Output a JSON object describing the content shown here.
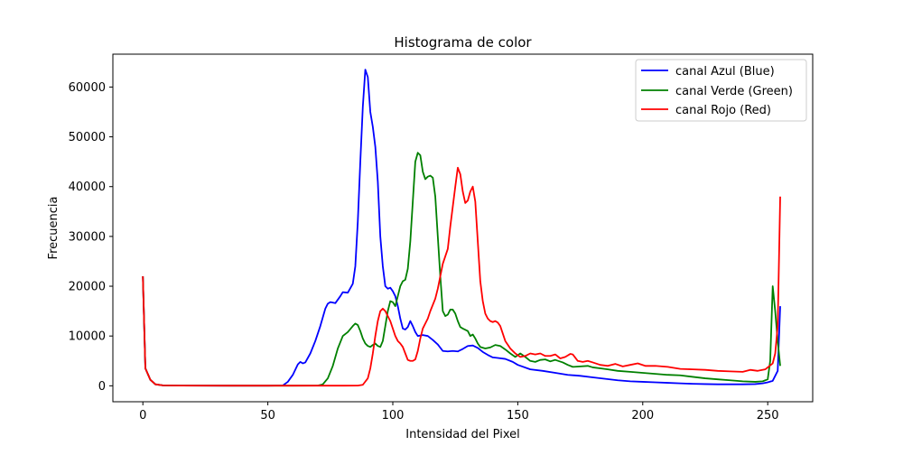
{
  "chart_data": {
    "type": "line",
    "title": "Histograma de color",
    "xlabel": "Intensidad del Pixel",
    "ylabel": "Frecuencia",
    "xlim": [
      -12,
      268
    ],
    "ylim": [
      -3200,
      66600
    ],
    "xticks": [
      0,
      50,
      100,
      150,
      200,
      250
    ],
    "yticks": [
      0,
      10000,
      20000,
      30000,
      40000,
      50000,
      60000
    ],
    "grid": false,
    "legend_position": "top-right",
    "series": [
      {
        "name": "canal Azul (Blue)",
        "color": "#0000ff",
        "points": [
          [
            0,
            22000
          ],
          [
            1,
            3500
          ],
          [
            3,
            1200
          ],
          [
            5,
            300
          ],
          [
            8,
            80
          ],
          [
            15,
            40
          ],
          [
            30,
            30
          ],
          [
            50,
            20
          ],
          [
            56,
            60
          ],
          [
            58,
            800
          ],
          [
            60,
            2200
          ],
          [
            62,
            4300
          ],
          [
            63,
            4800
          ],
          [
            64,
            4500
          ],
          [
            65,
            4700
          ],
          [
            67,
            6500
          ],
          [
            69,
            9000
          ],
          [
            71,
            12000
          ],
          [
            73,
            15500
          ],
          [
            74,
            16500
          ],
          [
            75,
            16800
          ],
          [
            77,
            16600
          ],
          [
            79,
            18000
          ],
          [
            80,
            18800
          ],
          [
            82,
            18700
          ],
          [
            84,
            20500
          ],
          [
            85,
            24000
          ],
          [
            86,
            33000
          ],
          [
            87,
            45000
          ],
          [
            88,
            56000
          ],
          [
            89,
            63500
          ],
          [
            90,
            62000
          ],
          [
            91,
            55000
          ],
          [
            92,
            52000
          ],
          [
            93,
            48000
          ],
          [
            94,
            41000
          ],
          [
            95,
            30000
          ],
          [
            96,
            24000
          ],
          [
            97,
            20000
          ],
          [
            98,
            19500
          ],
          [
            99,
            19700
          ],
          [
            100,
            19000
          ],
          [
            101,
            18000
          ],
          [
            102,
            16000
          ],
          [
            103,
            13500
          ],
          [
            104,
            11500
          ],
          [
            105,
            11300
          ],
          [
            106,
            11800
          ],
          [
            107,
            13000
          ],
          [
            108,
            12000
          ],
          [
            109,
            10800
          ],
          [
            110,
            10000
          ],
          [
            112,
            10200
          ],
          [
            114,
            10000
          ],
          [
            116,
            9200
          ],
          [
            118,
            8300
          ],
          [
            120,
            7000
          ],
          [
            122,
            6900
          ],
          [
            124,
            7000
          ],
          [
            126,
            6900
          ],
          [
            128,
            7400
          ],
          [
            130,
            8000
          ],
          [
            132,
            8100
          ],
          [
            134,
            7600
          ],
          [
            136,
            6800
          ],
          [
            138,
            6200
          ],
          [
            140,
            5700
          ],
          [
            142,
            5600
          ],
          [
            145,
            5400
          ],
          [
            148,
            4800
          ],
          [
            150,
            4200
          ],
          [
            155,
            3300
          ],
          [
            160,
            3000
          ],
          [
            165,
            2600
          ],
          [
            170,
            2200
          ],
          [
            175,
            2000
          ],
          [
            180,
            1700
          ],
          [
            185,
            1400
          ],
          [
            190,
            1100
          ],
          [
            195,
            900
          ],
          [
            200,
            800
          ],
          [
            205,
            700
          ],
          [
            210,
            600
          ],
          [
            215,
            500
          ],
          [
            220,
            400
          ],
          [
            225,
            350
          ],
          [
            230,
            300
          ],
          [
            235,
            300
          ],
          [
            240,
            300
          ],
          [
            245,
            350
          ],
          [
            248,
            500
          ],
          [
            250,
            700
          ],
          [
            252,
            1000
          ],
          [
            254,
            3000
          ],
          [
            255,
            16000
          ]
        ]
      },
      {
        "name": "canal Verde (Green)",
        "color": "#008000",
        "points": [
          [
            0,
            22000
          ],
          [
            1,
            3500
          ],
          [
            3,
            1200
          ],
          [
            5,
            300
          ],
          [
            8,
            80
          ],
          [
            15,
            40
          ],
          [
            40,
            30
          ],
          [
            60,
            30
          ],
          [
            70,
            40
          ],
          [
            72,
            300
          ],
          [
            74,
            1500
          ],
          [
            76,
            4000
          ],
          [
            78,
            7500
          ],
          [
            80,
            10000
          ],
          [
            82,
            10800
          ],
          [
            84,
            12000
          ],
          [
            85,
            12500
          ],
          [
            86,
            12200
          ],
          [
            87,
            11000
          ],
          [
            88,
            9500
          ],
          [
            89,
            8500
          ],
          [
            90,
            8000
          ],
          [
            91,
            7800
          ],
          [
            92,
            8200
          ],
          [
            93,
            8500
          ],
          [
            94,
            8000
          ],
          [
            95,
            7800
          ],
          [
            96,
            9000
          ],
          [
            97,
            12000
          ],
          [
            98,
            15000
          ],
          [
            99,
            17000
          ],
          [
            100,
            16800
          ],
          [
            101,
            16000
          ],
          [
            102,
            18000
          ],
          [
            103,
            20000
          ],
          [
            104,
            21000
          ],
          [
            105,
            21300
          ],
          [
            106,
            23500
          ],
          [
            107,
            29000
          ],
          [
            108,
            37000
          ],
          [
            109,
            45000
          ],
          [
            110,
            46800
          ],
          [
            111,
            46300
          ],
          [
            112,
            43000
          ],
          [
            113,
            41500
          ],
          [
            114,
            42000
          ],
          [
            115,
            42200
          ],
          [
            116,
            41800
          ],
          [
            117,
            38000
          ],
          [
            118,
            30000
          ],
          [
            119,
            22000
          ],
          [
            120,
            15000
          ],
          [
            121,
            14000
          ],
          [
            122,
            14300
          ],
          [
            123,
            15300
          ],
          [
            124,
            15300
          ],
          [
            125,
            14500
          ],
          [
            126,
            13000
          ],
          [
            127,
            11800
          ],
          [
            128,
            11500
          ],
          [
            130,
            11000
          ],
          [
            131,
            10000
          ],
          [
            132,
            10300
          ],
          [
            133,
            9500
          ],
          [
            134,
            8500
          ],
          [
            135,
            7800
          ],
          [
            137,
            7500
          ],
          [
            139,
            7700
          ],
          [
            141,
            8200
          ],
          [
            143,
            8000
          ],
          [
            145,
            7300
          ],
          [
            147,
            6500
          ],
          [
            149,
            5800
          ],
          [
            151,
            6500
          ],
          [
            153,
            5800
          ],
          [
            155,
            5000
          ],
          [
            157,
            4800
          ],
          [
            159,
            5200
          ],
          [
            161,
            5300
          ],
          [
            163,
            4900
          ],
          [
            165,
            5200
          ],
          [
            168,
            4700
          ],
          [
            170,
            4200
          ],
          [
            172,
            3800
          ],
          [
            175,
            3900
          ],
          [
            178,
            4000
          ],
          [
            180,
            3700
          ],
          [
            183,
            3500
          ],
          [
            186,
            3300
          ],
          [
            190,
            3000
          ],
          [
            195,
            2800
          ],
          [
            200,
            2600
          ],
          [
            205,
            2400
          ],
          [
            210,
            2200
          ],
          [
            215,
            2100
          ],
          [
            220,
            1800
          ],
          [
            225,
            1500
          ],
          [
            230,
            1300
          ],
          [
            235,
            1100
          ],
          [
            240,
            900
          ],
          [
            245,
            800
          ],
          [
            248,
            900
          ],
          [
            250,
            1300
          ],
          [
            251,
            5000
          ],
          [
            252,
            20000
          ],
          [
            253,
            15000
          ],
          [
            254,
            9000
          ],
          [
            255,
            4000
          ]
        ]
      },
      {
        "name": "canal Rojo (Red)",
        "color": "#ff0000",
        "points": [
          [
            0,
            22000
          ],
          [
            1,
            3500
          ],
          [
            3,
            1200
          ],
          [
            5,
            300
          ],
          [
            8,
            80
          ],
          [
            15,
            40
          ],
          [
            40,
            30
          ],
          [
            60,
            30
          ],
          [
            80,
            30
          ],
          [
            86,
            40
          ],
          [
            88,
            200
          ],
          [
            90,
            1500
          ],
          [
            91,
            3500
          ],
          [
            92,
            6500
          ],
          [
            93,
            10000
          ],
          [
            94,
            13000
          ],
          [
            95,
            15000
          ],
          [
            96,
            15500
          ],
          [
            97,
            15000
          ],
          [
            98,
            14000
          ],
          [
            99,
            13000
          ],
          [
            100,
            11500
          ],
          [
            101,
            10000
          ],
          [
            102,
            9000
          ],
          [
            103,
            8500
          ],
          [
            104,
            7800
          ],
          [
            105,
            6500
          ],
          [
            106,
            5200
          ],
          [
            107,
            5000
          ],
          [
            108,
            5000
          ],
          [
            109,
            5300
          ],
          [
            110,
            7000
          ],
          [
            111,
            9500
          ],
          [
            112,
            11500
          ],
          [
            113,
            12500
          ],
          [
            114,
            13500
          ],
          [
            115,
            15000
          ],
          [
            117,
            17500
          ],
          [
            118,
            19500
          ],
          [
            119,
            22000
          ],
          [
            120,
            24500
          ],
          [
            121,
            26000
          ],
          [
            122,
            27500
          ],
          [
            123,
            32000
          ],
          [
            124,
            36000
          ],
          [
            125,
            40000
          ],
          [
            126,
            43800
          ],
          [
            127,
            42500
          ],
          [
            128,
            39000
          ],
          [
            129,
            36700
          ],
          [
            130,
            37200
          ],
          [
            131,
            39000
          ],
          [
            132,
            40000
          ],
          [
            133,
            37000
          ],
          [
            134,
            29000
          ],
          [
            135,
            21000
          ],
          [
            136,
            17000
          ],
          [
            137,
            14500
          ],
          [
            138,
            13500
          ],
          [
            139,
            13000
          ],
          [
            140,
            12800
          ],
          [
            141,
            13000
          ],
          [
            142,
            12700
          ],
          [
            143,
            12000
          ],
          [
            144,
            10500
          ],
          [
            145,
            9000
          ],
          [
            147,
            7500
          ],
          [
            149,
            6500
          ],
          [
            151,
            5800
          ],
          [
            153,
            6000
          ],
          [
            155,
            6500
          ],
          [
            157,
            6300
          ],
          [
            159,
            6500
          ],
          [
            161,
            6000
          ],
          [
            163,
            6000
          ],
          [
            165,
            6300
          ],
          [
            167,
            5500
          ],
          [
            169,
            5800
          ],
          [
            171,
            6400
          ],
          [
            172,
            6300
          ],
          [
            174,
            5000
          ],
          [
            176,
            4800
          ],
          [
            178,
            5000
          ],
          [
            180,
            4700
          ],
          [
            183,
            4200
          ],
          [
            186,
            4000
          ],
          [
            189,
            4400
          ],
          [
            192,
            3900
          ],
          [
            195,
            4200
          ],
          [
            198,
            4500
          ],
          [
            201,
            4000
          ],
          [
            205,
            4000
          ],
          [
            210,
            3800
          ],
          [
            215,
            3400
          ],
          [
            220,
            3300
          ],
          [
            225,
            3200
          ],
          [
            230,
            3000
          ],
          [
            235,
            2900
          ],
          [
            240,
            2800
          ],
          [
            243,
            3200
          ],
          [
            246,
            3000
          ],
          [
            249,
            3300
          ],
          [
            252,
            4500
          ],
          [
            253,
            6500
          ],
          [
            254,
            12000
          ],
          [
            255,
            38000
          ]
        ]
      }
    ]
  }
}
